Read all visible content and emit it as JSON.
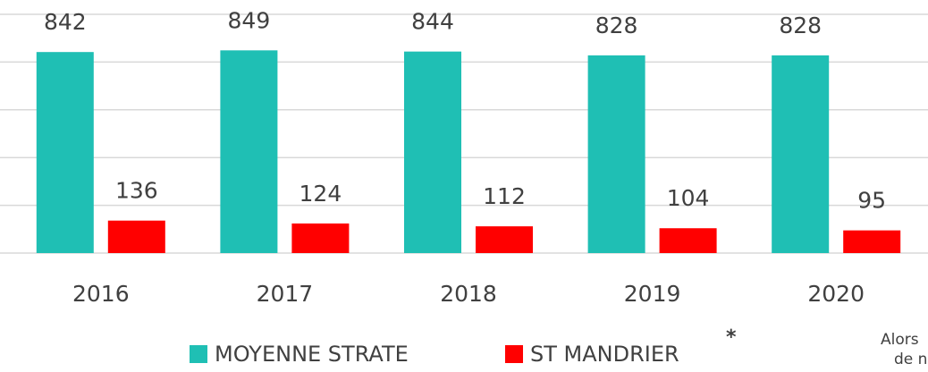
{
  "chart_data": {
    "type": "bar",
    "categories": [
      "2016",
      "2017",
      "2018",
      "2019",
      "2020"
    ],
    "series": [
      {
        "name": "MOYENNE STRATE",
        "color": "#1fbfb4",
        "values": [
          842,
          849,
          844,
          828,
          828
        ]
      },
      {
        "name": "ST MANDRIER",
        "color": "#ff0000",
        "values": [
          136,
          124,
          112,
          104,
          95
        ]
      }
    ],
    "ylim": [
      0,
      1000
    ],
    "yticks": [
      0,
      200,
      400,
      600,
      800,
      1000
    ],
    "grid": true
  },
  "extra_text": [
    "*",
    "Alors",
    "de n"
  ]
}
